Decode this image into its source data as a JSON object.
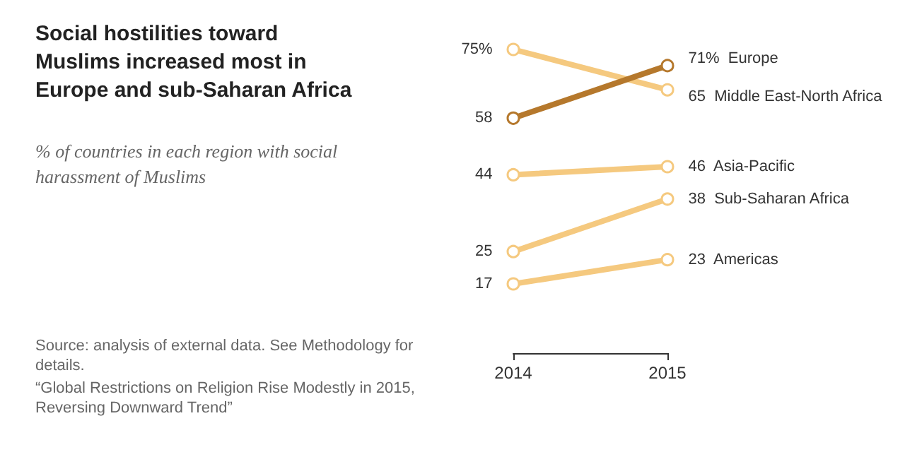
{
  "chart_data": {
    "type": "line",
    "title": "Social hostilities toward Muslims increased most in Europe and sub-Saharan Africa",
    "subtitle": "% of countries in each region with social harassment of Muslims",
    "categories": [
      "2014",
      "2015"
    ],
    "marker": "circle",
    "grid": false,
    "legend": false,
    "series": [
      {
        "name": "Middle East-North Africa",
        "color": "#f5c97f",
        "values": [
          75,
          65
        ],
        "value_labels": [
          "75%",
          "65"
        ]
      },
      {
        "name": "Asia-Pacific",
        "color": "#f5c97f",
        "values": [
          44,
          46
        ],
        "value_labels": [
          "44",
          "46"
        ]
      },
      {
        "name": "Sub-Saharan Africa",
        "color": "#f5c97f",
        "values": [
          25,
          38
        ],
        "value_labels": [
          "25",
          "38"
        ]
      },
      {
        "name": "Americas",
        "color": "#f5c97f",
        "values": [
          17,
          23
        ],
        "value_labels": [
          "17",
          "23"
        ]
      },
      {
        "name": "Europe",
        "color": "#b5782c",
        "values": [
          58,
          71
        ],
        "value_labels": [
          "58",
          "71%"
        ]
      }
    ],
    "annotations": [
      "Source: analysis of external data. See Methodology for details.",
      "“Global Restrictions on Religion Rise Modestly in 2015, Reversing Downward Trend”"
    ]
  }
}
